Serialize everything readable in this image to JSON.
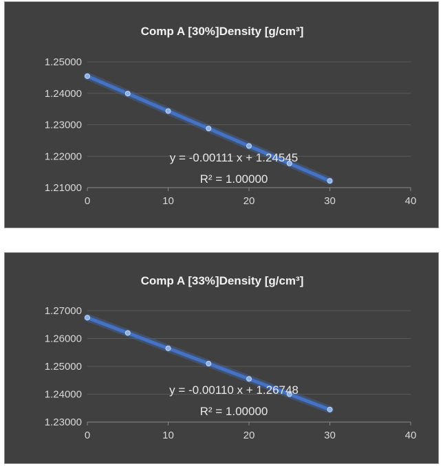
{
  "chart_data": [
    {
      "type": "scatter",
      "title": "Comp A [30%]Density [g/cm³]",
      "xlabel": "",
      "ylabel": "",
      "xlim": [
        0,
        40
      ],
      "ylim": [
        1.21,
        1.25
      ],
      "x_ticks": [
        "0",
        "10",
        "20",
        "30",
        "40"
      ],
      "y_ticks": [
        "1.21000",
        "1.22000",
        "1.23000",
        "1.24000",
        "1.25000"
      ],
      "grid": true,
      "legend": "none",
      "series": [
        {
          "x": [
            0,
            5,
            10,
            15,
            20,
            25,
            30
          ],
          "y": [
            1.24545,
            1.2399,
            1.23435,
            1.2288,
            1.22325,
            1.2177,
            1.21215
          ],
          "color": "#4472c4"
        }
      ],
      "trendline": {
        "equation": "y = -0.00111 x + 1.24545",
        "r2": "R² = 1.00000"
      }
    },
    {
      "type": "scatter",
      "title": "Comp A [33%]Density [g/cm³]",
      "xlabel": "",
      "ylabel": "",
      "xlim": [
        0,
        40
      ],
      "ylim": [
        1.23,
        1.27
      ],
      "x_ticks": [
        "0",
        "10",
        "20",
        "30",
        "40"
      ],
      "y_ticks": [
        "1.23000",
        "1.24000",
        "1.25000",
        "1.26000",
        "1.27000"
      ],
      "grid": true,
      "legend": "none",
      "series": [
        {
          "x": [
            0,
            5,
            10,
            15,
            20,
            25,
            30
          ],
          "y": [
            1.26748,
            1.26198,
            1.25648,
            1.25098,
            1.24548,
            1.23998,
            1.23448
          ],
          "color": "#4472c4"
        }
      ],
      "trendline": {
        "equation": "y = -0.00110 x + 1.26748",
        "r2": "R² = 1.00000"
      }
    }
  ]
}
